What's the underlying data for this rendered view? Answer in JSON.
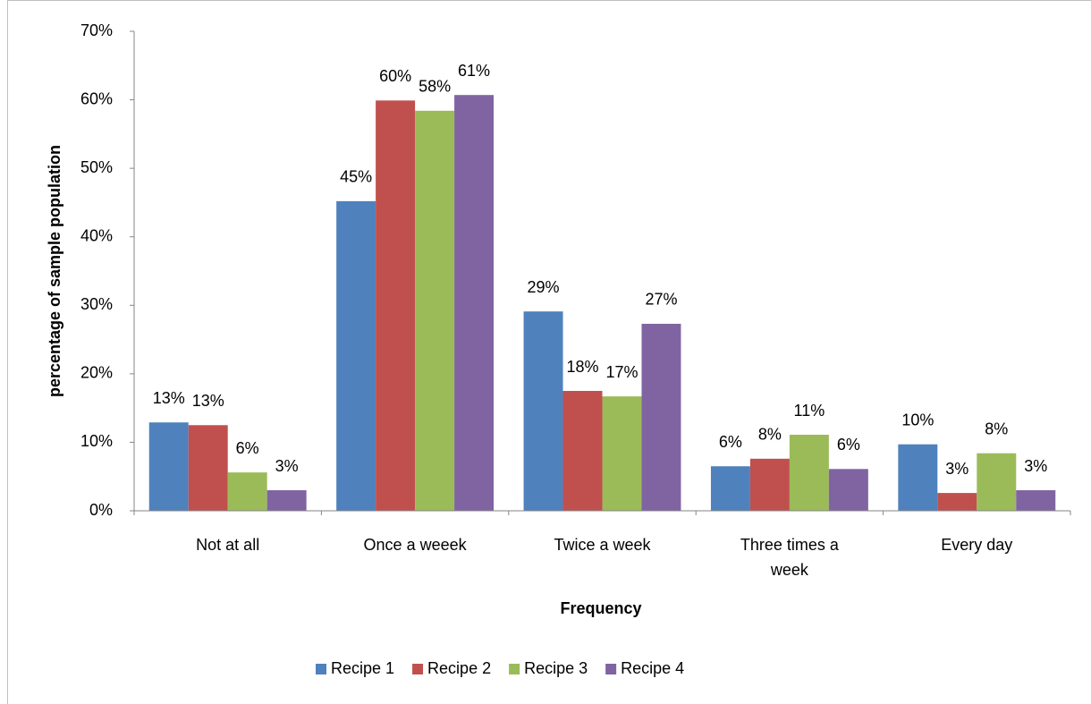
{
  "chart_data": {
    "type": "bar",
    "x_label": "Frequency",
    "y_label": "percentage of sample population",
    "categories": [
      "Not at all",
      "Once a weeek",
      "Twice a week",
      "Three times a week",
      "Every day"
    ],
    "series": [
      {
        "name": "Recipe 1",
        "color": "#4f81bd",
        "values": [
          12.9,
          45.2,
          29.1,
          6.5,
          9.7
        ],
        "value_labels": [
          "13%",
          "45%",
          "29%",
          "6%",
          "10%"
        ]
      },
      {
        "name": "Recipe 2",
        "color": "#c0504d",
        "values": [
          12.5,
          59.9,
          17.5,
          7.6,
          2.6
        ],
        "value_labels": [
          "13%",
          "60%",
          "18%",
          "8%",
          "3%"
        ]
      },
      {
        "name": "Recipe 3",
        "color": "#9bbb59",
        "values": [
          5.6,
          58.4,
          16.7,
          11.1,
          8.4
        ],
        "value_labels": [
          "6%",
          "58%",
          "17%",
          "11%",
          "8%"
        ]
      },
      {
        "name": "Recipe 4",
        "color": "#8064a2",
        "values": [
          3.0,
          60.7,
          27.3,
          6.1,
          3.0
        ],
        "value_labels": [
          "3%",
          "61%",
          "27%",
          "6%",
          "3%"
        ]
      }
    ],
    "ylim": [
      0,
      70
    ],
    "yticks": [
      {
        "value": 0,
        "label": "0%"
      },
      {
        "value": 10,
        "label": "10%"
      },
      {
        "value": 20,
        "label": "20%"
      },
      {
        "value": 30,
        "label": "30%"
      },
      {
        "value": 40,
        "label": "40%"
      },
      {
        "value": 50,
        "label": "50%"
      },
      {
        "value": 60,
        "label": "60%"
      },
      {
        "value": 70,
        "label": "70%"
      }
    ],
    "legend": "bottom"
  }
}
